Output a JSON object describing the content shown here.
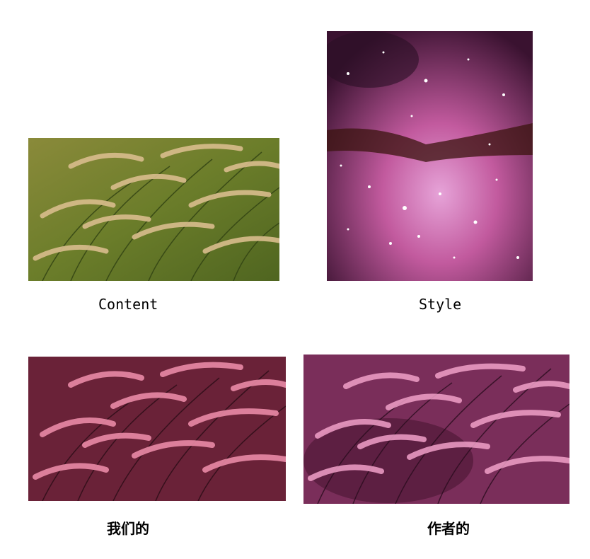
{
  "captions": {
    "content": "Content",
    "style": "Style",
    "ours": "我们的",
    "author": "作者的"
  },
  "images": {
    "content": {
      "subject": "grass seed heads (foxtail)"
    },
    "style": {
      "subject": "pink nebula star field"
    },
    "ours": {
      "subject": "stylized grass, pink"
    },
    "author": {
      "subject": "stylized grass, pink-purple"
    }
  },
  "colors": {
    "grass_bg": "#6f7f2c",
    "grass_seed": "#d6b98a",
    "nebula_dark": "#2a0f24",
    "nebula_pink": "#c75a9f",
    "stylized_bg": "#5a1f33",
    "stylized_seed": "#e88aa5"
  }
}
